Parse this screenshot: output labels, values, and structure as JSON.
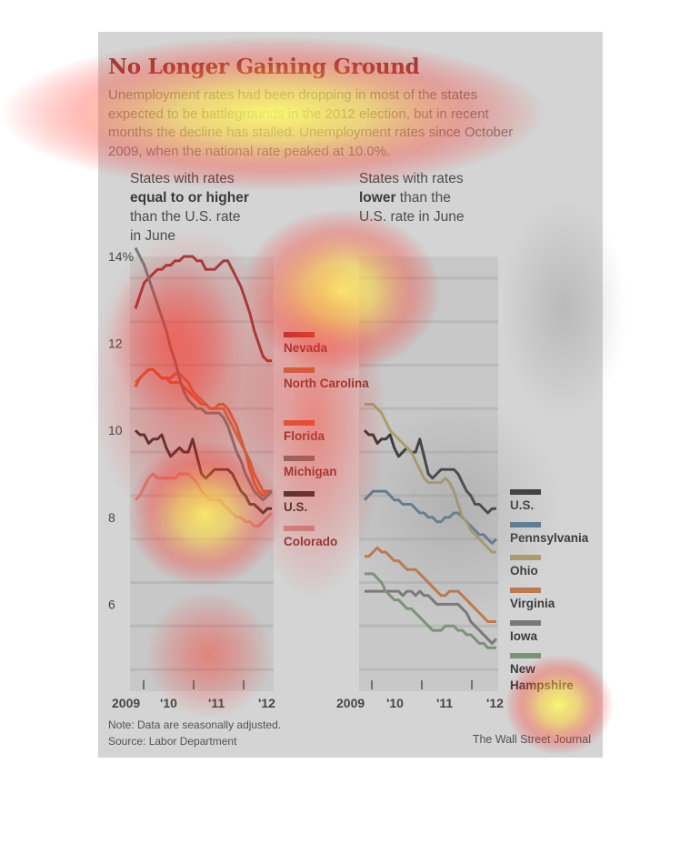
{
  "header": {
    "title": "No Longer Gaining Ground",
    "subtitle": "Unemployment rates had been dropping in most of the states expected to be battlegrounds in the 2012 election, but in recent months the decline has stalled. Unemployment rates since October 2009, when the national rate peaked at 10.0%."
  },
  "left_panel": {
    "heading_line1": "States with rates",
    "heading_bold": "equal to or higher",
    "heading_line3": "than the U.S. rate",
    "heading_line4": "in June"
  },
  "right_panel": {
    "heading_line1": "States with rates",
    "heading_bold": "lower",
    "heading_rest": " than the",
    "heading_line3": "U.S. rate in June"
  },
  "footer": {
    "note": "Note: Data are seasonally adjusted.",
    "source": "Source: Labor Department",
    "credit": "The Wall Street Journal"
  },
  "chart_data": [
    {
      "type": "line",
      "title": "States with rates equal to or higher than the U.S. rate in June",
      "ylabel": "",
      "ylim": [
        4,
        14
      ],
      "yticks": [
        "14%",
        "12",
        "10",
        "8",
        "6"
      ],
      "xticks": [
        "2009",
        "'10",
        "'11",
        "'12"
      ],
      "x_range": [
        "Oct 2009",
        "Jun 2012"
      ],
      "series": [
        {
          "name": "Nevada",
          "color": "#a3171a",
          "values": [
            12.8,
            13.1,
            13.4,
            13.5,
            13.6,
            13.7,
            13.7,
            13.8,
            13.8,
            13.9,
            13.9,
            14.0,
            14.0,
            14.0,
            13.9,
            13.9,
            13.7,
            13.7,
            13.7,
            13.8,
            13.9,
            13.9,
            13.7,
            13.5,
            13.3,
            13.0,
            12.7,
            12.3,
            12.0,
            11.7,
            11.6,
            11.6
          ]
        },
        {
          "name": "North Carolina",
          "color": "#d3652f",
          "values": [
            11.1,
            11.2,
            11.3,
            11.4,
            11.4,
            11.3,
            11.2,
            11.2,
            11.2,
            11.3,
            11.3,
            11.2,
            11.1,
            10.9,
            10.8,
            10.7,
            10.6,
            10.5,
            10.5,
            10.5,
            10.5,
            10.3,
            10.1,
            9.9,
            9.7,
            9.5,
            9.3,
            9.0,
            8.8,
            8.6,
            8.6,
            8.6
          ]
        },
        {
          "name": "Florida",
          "color": "#e6541e",
          "values": [
            11.0,
            11.2,
            11.3,
            11.4,
            11.4,
            11.3,
            11.2,
            11.2,
            11.1,
            11.1,
            11.1,
            11.0,
            10.9,
            10.8,
            10.7,
            10.6,
            10.6,
            10.5,
            10.5,
            10.6,
            10.6,
            10.5,
            10.3,
            10.1,
            9.8,
            9.5,
            9.1,
            8.8,
            8.6,
            8.5,
            8.6,
            8.6
          ]
        },
        {
          "name": "Michigan",
          "color": "#6b6b6b",
          "values": [
            14.2,
            14.0,
            13.8,
            13.5,
            13.2,
            12.9,
            12.6,
            12.3,
            11.9,
            11.6,
            11.2,
            10.9,
            10.7,
            10.6,
            10.5,
            10.5,
            10.4,
            10.4,
            10.4,
            10.4,
            10.3,
            10.1,
            9.8,
            9.5,
            9.3,
            9.0,
            8.8,
            8.6,
            8.5,
            8.4,
            8.5,
            8.6
          ]
        },
        {
          "name": "U.S.",
          "color": "#111111",
          "values": [
            10.0,
            9.9,
            9.9,
            9.7,
            9.8,
            9.8,
            9.9,
            9.6,
            9.4,
            9.5,
            9.6,
            9.5,
            9.5,
            9.8,
            9.4,
            9.0,
            8.9,
            9.0,
            9.1,
            9.1,
            9.1,
            9.1,
            9.0,
            8.8,
            8.6,
            8.5,
            8.3,
            8.3,
            8.2,
            8.1,
            8.2,
            8.2
          ]
        },
        {
          "name": "Colorado",
          "color": "#e08a7e",
          "values": [
            8.4,
            8.5,
            8.7,
            8.9,
            9.0,
            8.9,
            8.9,
            8.9,
            8.9,
            8.9,
            9.0,
            9.0,
            9.0,
            8.9,
            8.8,
            8.6,
            8.5,
            8.4,
            8.4,
            8.4,
            8.3,
            8.2,
            8.1,
            8.0,
            8.0,
            7.9,
            7.9,
            7.8,
            7.8,
            7.9,
            8.0,
            8.1
          ]
        }
      ]
    },
    {
      "type": "line",
      "title": "States with rates lower than the U.S. rate in June",
      "ylabel": "",
      "ylim": [
        4,
        14
      ],
      "yticks": [
        "14%",
        "12",
        "10",
        "8",
        "6"
      ],
      "xticks": [
        "2009",
        "'10",
        "'11",
        "'12"
      ],
      "x_range": [
        "Oct 2009",
        "Jun 2012"
      ],
      "series": [
        {
          "name": "U.S.",
          "color": "#111111",
          "values": [
            10.0,
            9.9,
            9.9,
            9.7,
            9.8,
            9.8,
            9.9,
            9.6,
            9.4,
            9.5,
            9.6,
            9.5,
            9.5,
            9.8,
            9.4,
            9.0,
            8.9,
            9.0,
            9.1,
            9.1,
            9.1,
            9.1,
            9.0,
            8.8,
            8.6,
            8.5,
            8.3,
            8.3,
            8.2,
            8.1,
            8.2,
            8.2
          ]
        },
        {
          "name": "Pennsylvania",
          "color": "#3e6f94",
          "values": [
            8.4,
            8.5,
            8.6,
            8.6,
            8.6,
            8.6,
            8.5,
            8.4,
            8.4,
            8.3,
            8.3,
            8.3,
            8.2,
            8.1,
            8.1,
            8.0,
            8.0,
            7.9,
            7.9,
            8.0,
            8.0,
            8.1,
            8.1,
            8.0,
            7.9,
            7.8,
            7.7,
            7.6,
            7.6,
            7.5,
            7.4,
            7.5
          ]
        },
        {
          "name": "Ohio",
          "color": "#b3a056",
          "values": [
            10.6,
            10.6,
            10.6,
            10.5,
            10.4,
            10.2,
            10.0,
            9.9,
            9.8,
            9.7,
            9.6,
            9.5,
            9.3,
            9.1,
            8.9,
            8.8,
            8.8,
            8.8,
            8.8,
            8.9,
            8.8,
            8.6,
            8.3,
            8.0,
            7.9,
            7.7,
            7.6,
            7.5,
            7.4,
            7.3,
            7.2,
            7.2
          ]
        },
        {
          "name": "Virginia",
          "color": "#cf6a2a",
          "values": [
            7.1,
            7.1,
            7.2,
            7.3,
            7.2,
            7.2,
            7.1,
            7.0,
            7.0,
            6.9,
            6.8,
            6.8,
            6.8,
            6.7,
            6.6,
            6.5,
            6.4,
            6.3,
            6.2,
            6.2,
            6.3,
            6.3,
            6.3,
            6.2,
            6.1,
            6.0,
            5.9,
            5.8,
            5.7,
            5.6,
            5.6,
            5.6
          ]
        },
        {
          "name": "Iowa",
          "color": "#6b6b6b",
          "values": [
            6.3,
            6.3,
            6.3,
            6.3,
            6.3,
            6.3,
            6.3,
            6.3,
            6.3,
            6.2,
            6.3,
            6.3,
            6.2,
            6.3,
            6.2,
            6.2,
            6.1,
            6.0,
            6.0,
            6.0,
            6.0,
            6.0,
            6.0,
            5.9,
            5.8,
            5.6,
            5.5,
            5.4,
            5.3,
            5.2,
            5.1,
            5.2
          ]
        },
        {
          "name": "New Hampshire",
          "color": "#6f8f6a",
          "values": [
            6.7,
            6.7,
            6.7,
            6.6,
            6.5,
            6.3,
            6.2,
            6.1,
            6.1,
            6.0,
            5.9,
            5.9,
            5.8,
            5.7,
            5.6,
            5.5,
            5.4,
            5.4,
            5.4,
            5.5,
            5.5,
            5.5,
            5.4,
            5.4,
            5.3,
            5.3,
            5.2,
            5.1,
            5.1,
            5.0,
            5.0,
            5.0
          ]
        }
      ]
    }
  ]
}
